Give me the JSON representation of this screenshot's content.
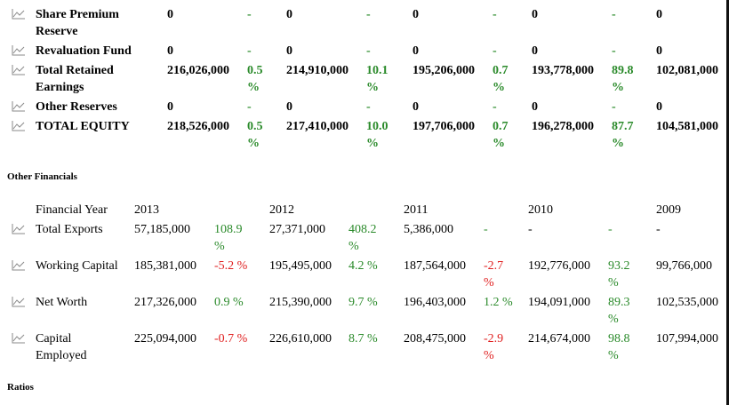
{
  "equity_rows": [
    {
      "label": "Share Premium Reserve",
      "v2013": "0",
      "c2013": "-",
      "v2012": "0",
      "c2012": "-",
      "v2011": "0",
      "c2011": "-",
      "v2010": "0",
      "c2010": "-",
      "v2009": "0"
    },
    {
      "label": "Revaluation Fund",
      "v2013": "0",
      "c2013": "-",
      "v2012": "0",
      "c2012": "-",
      "v2011": "0",
      "c2011": "-",
      "v2010": "0",
      "c2010": "-",
      "v2009": "0"
    },
    {
      "label": "Total Retained Earnings",
      "v2013": "216,026,000",
      "c2013": "0.5 %",
      "v2012": "214,910,000",
      "c2012": "10.1 %",
      "v2011": "195,206,000",
      "c2011": "0.7 %",
      "v2010": "193,778,000",
      "c2010": "89.8 %",
      "v2009": "102,081,000"
    },
    {
      "label": "Other Reserves",
      "v2013": "0",
      "c2013": "-",
      "v2012": "0",
      "c2012": "-",
      "v2011": "0",
      "c2011": "-",
      "v2010": "0",
      "c2010": "-",
      "v2009": "0"
    },
    {
      "label": "TOTAL EQUITY",
      "v2013": "218,526,000",
      "c2013": "0.5 %",
      "v2012": "217,410,000",
      "c2012": "10.0 %",
      "v2011": "197,706,000",
      "c2011": "0.7 %",
      "v2010": "196,278,000",
      "c2010": "87.7 %",
      "v2009": "104,581,000"
    }
  ],
  "other_financials": {
    "title": "Other Financials",
    "header": {
      "label": "Financial Year",
      "y2013": "2013",
      "y2012": "2012",
      "y2011": "2011",
      "y2010": "2010",
      "y2009": "2009"
    },
    "rows": [
      {
        "label": "Total Exports",
        "v2013": "57,185,000",
        "c2013": "108.9 %",
        "v2012": "27,371,000",
        "c2012": "408.2 %",
        "v2011": "5,386,000",
        "c2011": "-",
        "v2010": "-",
        "c2010": "-",
        "v2009": "-"
      },
      {
        "label": "Working Capital",
        "v2013": "185,381,000",
        "c2013": "-5.2 %",
        "v2012": "195,495,000",
        "c2012": "4.2 %",
        "v2011": "187,564,000",
        "c2011": "-2.7 %",
        "v2010": "192,776,000",
        "c2010": "93.2 %",
        "v2009": "99,766,000"
      },
      {
        "label": "Net Worth",
        "v2013": "217,326,000",
        "c2013": "0.9 %",
        "v2012": "215,390,000",
        "c2012": "9.7 %",
        "v2011": "196,403,000",
        "c2011": "1.2 %",
        "v2010": "194,091,000",
        "c2010": "89.3 %",
        "v2009": "102,535,000"
      },
      {
        "label": "Capital Employed",
        "v2013": "225,094,000",
        "c2013": "-0.7 %",
        "v2012": "226,610,000",
        "c2012": "8.7 %",
        "v2011": "208,475,000",
        "c2011": "-2.9 %",
        "v2010": "214,674,000",
        "c2010": "98.8 %",
        "v2009": "107,994,000"
      }
    ]
  },
  "ratios": {
    "title": "Ratios"
  },
  "colors": {
    "positive": "#2a8a2a",
    "negative": "#e02020"
  }
}
